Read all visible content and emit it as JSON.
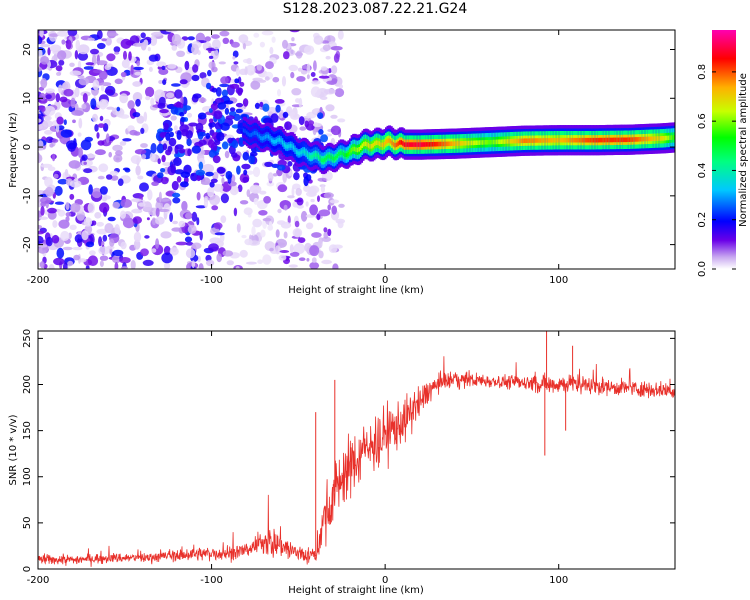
{
  "figure": {
    "title": "S128.2023.087.22.21.G24"
  },
  "chart_data": [
    {
      "type": "heatmap",
      "xlabel": "Height of straight line (km)",
      "ylabel": "Frequency (Hz)",
      "xlim": [
        -200,
        167
      ],
      "ylim": [
        -25,
        24
      ],
      "x_ticks": [
        "-200",
        "-100",
        "0",
        "100"
      ],
      "x_tick_values": [
        -200,
        -100,
        0,
        100
      ],
      "y_ticks": [
        "-20",
        "-10",
        "0",
        "10",
        "20"
      ],
      "y_tick_values": [
        -20,
        -10,
        0,
        10,
        20
      ],
      "colorbar": {
        "label": "Normalized spectral amplitude",
        "range": [
          0,
          0.97
        ],
        "ticks": [
          "0.0",
          "0.2",
          "0.4",
          "0.6",
          "0.8"
        ],
        "tick_values": [
          0,
          0.2,
          0.4,
          0.6,
          0.8
        ],
        "colormap": "gist_ncar_like",
        "colors": [
          "#ffffff",
          "#c8a8f0",
          "#6a00e8",
          "#0000ff",
          "#00c8ff",
          "#00ff40",
          "#c8ff00",
          "#ffb000",
          "#ff0000",
          "#ff00c0"
        ]
      },
      "ridge": {
        "x": [
          -80,
          -70,
          -60,
          -50,
          -45,
          -40,
          -35,
          -30,
          -25,
          -20,
          -15,
          -10,
          -5,
          0,
          5,
          10,
          20,
          30,
          40,
          60,
          80,
          100,
          120,
          140,
          160,
          167
        ],
        "frequency": [
          3,
          2,
          1,
          -1,
          -1.5,
          -2,
          -2.5,
          -2,
          -1.5,
          -1,
          0,
          0.5,
          0.5,
          1,
          0.8,
          0.5,
          0.5,
          0.6,
          0.7,
          1,
          1.3,
          1.4,
          1.4,
          1.5,
          1.8,
          2
        ],
        "amplitude": [
          0.25,
          0.3,
          0.35,
          0.35,
          0.4,
          0.45,
          0.5,
          0.5,
          0.5,
          0.6,
          0.65,
          0.7,
          0.7,
          0.75,
          0.8,
          0.9,
          0.92,
          0.85,
          0.75,
          0.6,
          0.8,
          0.75,
          0.85,
          0.85,
          0.7,
          0.55
        ]
      }
    },
    {
      "type": "line",
      "xlabel": "Height of straight line (km)",
      "ylabel": "SNR (10 * v/v)",
      "xlim": [
        -200,
        167
      ],
      "ylim": [
        0,
        258
      ],
      "x_ticks": [
        "-200",
        "-100",
        "0",
        "100"
      ],
      "x_tick_values": [
        -200,
        -100,
        0,
        100
      ],
      "y_ticks": [
        "0",
        "50",
        "100",
        "150",
        "200",
        "250"
      ],
      "y_tick_values": [
        0,
        50,
        100,
        150,
        200,
        250
      ],
      "color": "#e8302a",
      "series": [
        {
          "x": [
            -200,
            -180,
            -160,
            -140,
            -120,
            -100,
            -90,
            -80,
            -75,
            -70,
            -65,
            -60,
            -55,
            -50,
            -45,
            -40,
            -35,
            -30,
            -25,
            -20,
            -15,
            -10,
            -5,
            0,
            5,
            10,
            15,
            20,
            25,
            30,
            40,
            50,
            60,
            70,
            80,
            90,
            95,
            100,
            110,
            120,
            130,
            140,
            150,
            160,
            167
          ],
          "y": [
            10,
            10,
            12,
            12,
            15,
            17,
            17,
            20,
            25,
            30,
            28,
            27,
            20,
            17,
            15,
            14,
            55,
            80,
            100,
            110,
            122,
            130,
            138,
            145,
            152,
            160,
            168,
            180,
            193,
            200,
            205,
            205,
            204,
            203,
            202,
            201,
            200,
            201,
            200,
            199,
            197,
            196,
            195,
            194,
            193
          ],
          "noise": [
            5,
            5,
            5,
            5,
            6,
            7,
            8,
            8,
            10,
            14,
            16,
            14,
            12,
            10,
            8,
            8,
            25,
            30,
            30,
            30,
            30,
            28,
            28,
            28,
            25,
            22,
            20,
            16,
            12,
            10,
            8,
            7,
            7,
            7,
            8,
            10,
            10,
            10,
            9,
            8,
            8,
            8,
            8,
            8,
            8
          ]
        }
      ],
      "spikes": [
        {
          "x": -29,
          "y": 205
        },
        {
          "x": -40,
          "y": 170
        },
        {
          "x": 93,
          "y": 258
        },
        {
          "x": 92,
          "y": 123
        },
        {
          "x": 108,
          "y": 242
        },
        {
          "x": 104,
          "y": 150
        }
      ]
    }
  ]
}
